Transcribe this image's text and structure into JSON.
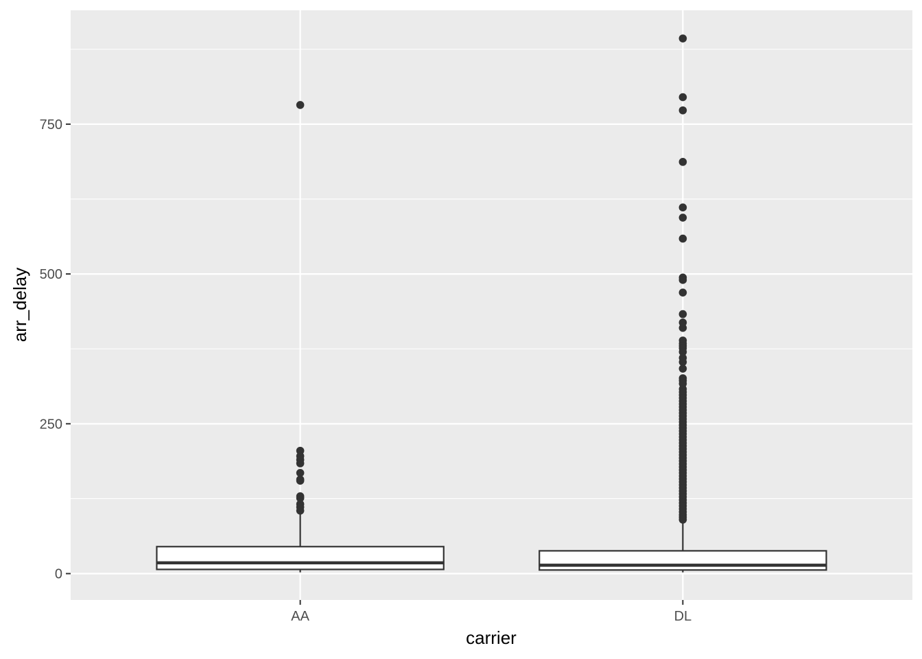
{
  "chart_data": {
    "type": "boxplot",
    "title": "",
    "xlabel": "carrier",
    "ylabel": "arr_delay",
    "categories": [
      "AA",
      "DL"
    ],
    "ylim": [
      -44,
      940
    ],
    "y_ticks": [
      0,
      250,
      500,
      750
    ],
    "y_tick_labels": [
      "0",
      "250",
      "500",
      "750"
    ],
    "grid": true,
    "legend": "none",
    "colors": {
      "panel_background": "#ebebeb",
      "grid_major": "#ffffff",
      "grid_minor": "#ffffff",
      "box_fill": "#ffffff",
      "box_stroke": "#333333",
      "outlier": "#333333",
      "tick_label": "#4d4d4d",
      "axis_title": "#000000"
    },
    "boxes": [
      {
        "category": "AA",
        "whisker_low": 2,
        "q1": 7,
        "median": 18,
        "q3": 45,
        "whisker_high": 102,
        "outliers": [
          782,
          205,
          196,
          190,
          184,
          168,
          157,
          155,
          129,
          126,
          116,
          111,
          105
        ]
      },
      {
        "category": "DL",
        "whisker_low": 2,
        "q1": 6,
        "median": 14,
        "q3": 38,
        "whisker_high": 86,
        "outliers": [
          893,
          795,
          773,
          687,
          611,
          594,
          559,
          494,
          490,
          469,
          433,
          419,
          410,
          389,
          384,
          380,
          376,
          370,
          360,
          353,
          342,
          326,
          322,
          317,
          308,
          303,
          298,
          293,
          288,
          283,
          278,
          273,
          268,
          263,
          258,
          253,
          248,
          243,
          238,
          233,
          228,
          223,
          218,
          213,
          208,
          203,
          198,
          193,
          188,
          183,
          178,
          173,
          168,
          163,
          158,
          153,
          148,
          143,
          138,
          133,
          128,
          123,
          118,
          113,
          108,
          103,
          98,
          94,
          90
        ]
      }
    ]
  }
}
